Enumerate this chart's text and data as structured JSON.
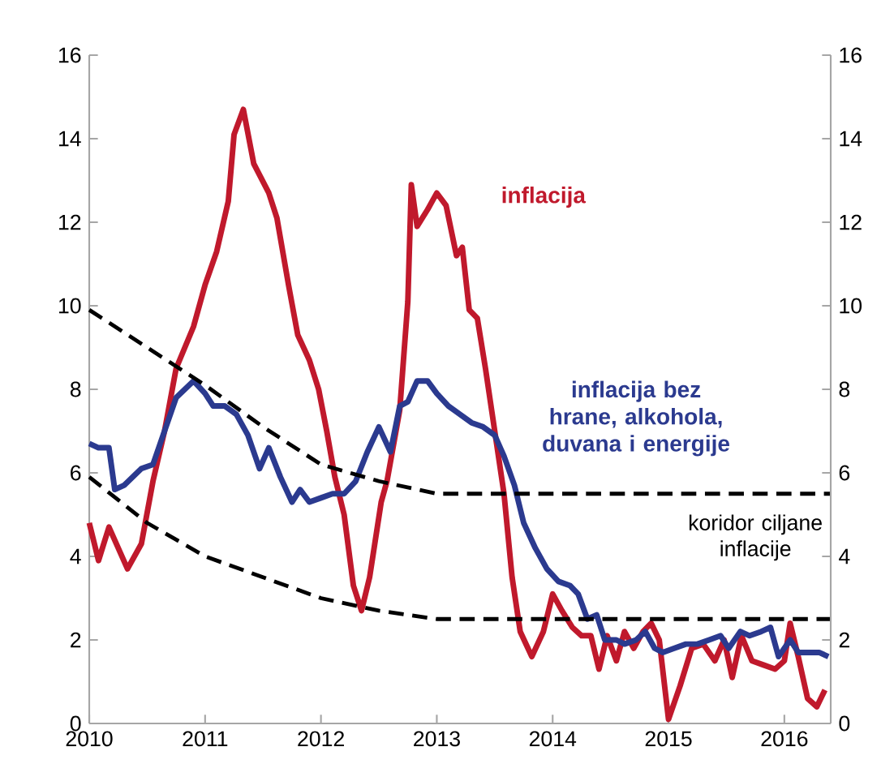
{
  "chart_data": {
    "type": "line",
    "xlim": [
      2010,
      2016.4
    ],
    "xticks": [
      2010,
      2011,
      2012,
      2013,
      2014,
      2015,
      2016
    ],
    "ylim": [
      0,
      16
    ],
    "yticks": [
      0,
      2,
      4,
      6,
      8,
      10,
      12,
      14,
      16
    ],
    "y2lim": [
      0,
      16
    ],
    "y2ticks": [
      0,
      2,
      4,
      6,
      8,
      10,
      12,
      14,
      16
    ],
    "annotations": [
      "koridor ciljane inflacije"
    ],
    "series": [
      {
        "name": "inflacija",
        "color": "#c0192c",
        "line_style": "solid",
        "x": [
          2010,
          2010.08,
          2010.17,
          2010.33,
          2010.45,
          2010.55,
          2010.65,
          2010.75,
          2010.9,
          2011.0,
          2011.1,
          2011.2,
          2011.25,
          2011.33,
          2011.42,
          2011.55,
          2011.62,
          2011.72,
          2011.8,
          2011.9,
          2011.98,
          2012.05,
          2012.12,
          2012.2,
          2012.28,
          2012.35,
          2012.42,
          2012.52,
          2012.57,
          2012.68,
          2012.75,
          2012.78,
          2012.83,
          2012.92,
          2013.0,
          2013.08,
          2013.17,
          2013.22,
          2013.28,
          2013.35,
          2013.42,
          2013.5,
          2013.58,
          2013.65,
          2013.72,
          2013.82,
          2013.92,
          2014.0,
          2014.08,
          2014.17,
          2014.25,
          2014.33,
          2014.4,
          2014.47,
          2014.55,
          2014.62,
          2014.7,
          2014.78,
          2014.85,
          2014.92,
          2015.0,
          2015.1,
          2015.2,
          2015.3,
          2015.4,
          2015.48,
          2015.55,
          2015.63,
          2015.72,
          2015.82,
          2015.92,
          2016.0,
          2016.05,
          2016.12,
          2016.2,
          2016.28,
          2016.35
        ],
        "values": [
          4.8,
          3.9,
          4.7,
          3.7,
          4.3,
          5.8,
          7.0,
          8.5,
          9.5,
          10.5,
          11.3,
          12.5,
          14.1,
          14.7,
          13.4,
          12.7,
          12.1,
          10.5,
          9.3,
          8.7,
          8.0,
          7.0,
          5.9,
          5.0,
          3.3,
          2.7,
          3.5,
          5.3,
          5.8,
          7.5,
          10.1,
          12.9,
          11.9,
          12.3,
          12.7,
          12.4,
          11.2,
          11.4,
          9.9,
          9.7,
          8.5,
          7.0,
          5.5,
          3.5,
          2.2,
          1.6,
          2.2,
          3.1,
          2.7,
          2.3,
          2.1,
          2.1,
          1.3,
          2.1,
          1.5,
          2.2,
          1.8,
          2.2,
          2.4,
          2.0,
          0.1,
          0.9,
          1.8,
          1.9,
          1.5,
          2.0,
          1.1,
          2.1,
          1.5,
          1.4,
          1.3,
          1.5,
          2.4,
          1.6,
          0.6,
          0.4,
          0.8
        ]
      },
      {
        "name": "inflacija bez hrane, alkohola, duvana i energije",
        "color": "#2b3a8f",
        "line_style": "solid",
        "x": [
          2010,
          2010.08,
          2010.17,
          2010.22,
          2010.3,
          2010.45,
          2010.55,
          2010.65,
          2010.75,
          2010.9,
          2011.0,
          2011.07,
          2011.17,
          2011.27,
          2011.37,
          2011.47,
          2011.55,
          2011.65,
          2011.75,
          2011.82,
          2011.9,
          2012.0,
          2012.1,
          2012.2,
          2012.3,
          2012.4,
          2012.5,
          2012.6,
          2012.68,
          2012.75,
          2012.83,
          2012.92,
          2013.0,
          2013.1,
          2013.2,
          2013.3,
          2013.4,
          2013.5,
          2013.58,
          2013.67,
          2013.75,
          2013.85,
          2013.95,
          2014.05,
          2014.15,
          2014.22,
          2014.3,
          2014.38,
          2014.45,
          2014.55,
          2014.62,
          2014.72,
          2014.8,
          2014.88,
          2014.95,
          2015.05,
          2015.15,
          2015.25,
          2015.35,
          2015.45,
          2015.52,
          2015.62,
          2015.7,
          2015.8,
          2015.88,
          2015.95,
          2016.05,
          2016.12,
          2016.2,
          2016.3,
          2016.38
        ],
        "values": [
          6.7,
          6.6,
          6.6,
          5.6,
          5.7,
          6.1,
          6.2,
          7.0,
          7.8,
          8.2,
          7.9,
          7.6,
          7.6,
          7.4,
          6.9,
          6.1,
          6.6,
          5.9,
          5.3,
          5.6,
          5.3,
          5.4,
          5.5,
          5.5,
          5.8,
          6.5,
          7.1,
          6.5,
          7.6,
          7.7,
          8.2,
          8.2,
          7.9,
          7.6,
          7.4,
          7.2,
          7.1,
          6.9,
          6.4,
          5.7,
          4.8,
          4.2,
          3.7,
          3.4,
          3.3,
          3.1,
          2.5,
          2.6,
          2.0,
          2.0,
          1.9,
          2.0,
          2.2,
          1.8,
          1.7,
          1.8,
          1.9,
          1.9,
          2.0,
          2.1,
          1.8,
          2.2,
          2.1,
          2.2,
          2.3,
          1.6,
          2.0,
          1.7,
          1.7,
          1.7,
          1.6
        ]
      },
      {
        "color": "#000000",
        "line_style": "dashed",
        "x": [
          2010,
          2010.5,
          2011,
          2011.5,
          2012,
          2012.5,
          2013,
          2014,
          2015,
          2016,
          2016.4
        ],
        "values": [
          9.9,
          9.0,
          8.1,
          7.1,
          6.2,
          5.8,
          5.5,
          5.5,
          5.5,
          5.5,
          5.5
        ]
      },
      {
        "color": "#000000",
        "line_style": "dashed",
        "x": [
          2010,
          2010.5,
          2011,
          2011.5,
          2012,
          2012.5,
          2013,
          2014,
          2015,
          2016,
          2016.4
        ],
        "values": [
          5.9,
          4.8,
          4.0,
          3.5,
          3.0,
          2.7,
          2.5,
          2.5,
          2.5,
          2.5,
          2.5
        ]
      }
    ]
  }
}
